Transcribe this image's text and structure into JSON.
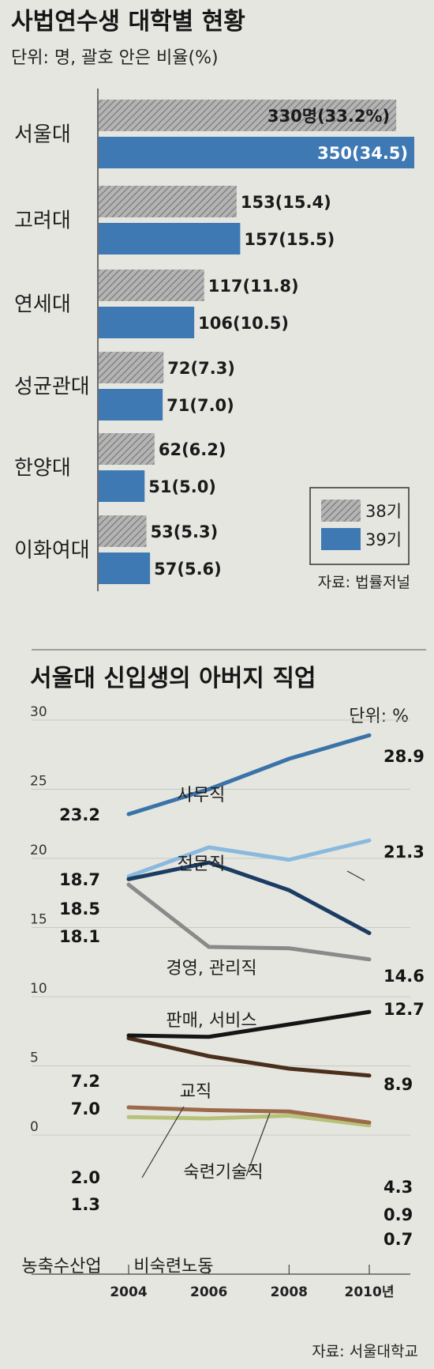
{
  "chart_data": [
    {
      "type": "bar",
      "title": "사법연수생 대학별 현황",
      "subtitle": "단위: 명, 괄호 안은 비율(%)",
      "categories": [
        "서울대",
        "고려대",
        "연세대",
        "성균관대",
        "한양대",
        "이화여대"
      ],
      "series": [
        {
          "name": "38기",
          "values": [
            330,
            153,
            117,
            72,
            62,
            53
          ],
          "labels": [
            "330명(33.2%)",
            "153(15.4)",
            "117(11.8)",
            "72(7.3)",
            "62(6.2)",
            "53(5.3)"
          ],
          "color": "#9a9a9a"
        },
        {
          "name": "39기",
          "values": [
            350,
            157,
            106,
            71,
            51,
            57
          ],
          "labels": [
            "350(34.5)",
            "157(15.5)",
            "106(10.5)",
            "71(7.0)",
            "51(5.0)",
            "57(5.6)"
          ],
          "color": "#3f79b4"
        }
      ],
      "legend_position": "bottom-right",
      "source": "자료: 법률저널"
    },
    {
      "type": "line",
      "title": "서울대 신입생의 아버지 직업",
      "unit": "단위: %",
      "x": [
        2004,
        2006,
        2008,
        2010
      ],
      "x_tick_labels": [
        "2004",
        "2006",
        "2008",
        "2010년"
      ],
      "y_ticks": [
        0,
        5,
        10,
        15,
        20,
        25,
        30
      ],
      "ylim": [
        0,
        30
      ],
      "grid": true,
      "series": [
        {
          "name": "사무직",
          "values": [
            23.2,
            25.0,
            27.2,
            28.9
          ],
          "start_label": "23.2",
          "end_label": "28.9",
          "color": "#3a73a8"
        },
        {
          "name": "전문직",
          "values": [
            18.7,
            20.8,
            19.9,
            21.3
          ],
          "start_label": "18.7",
          "end_label": "21.3",
          "color": "#8ab9de"
        },
        {
          "name": "경영, 관리직",
          "values": [
            18.5,
            19.7,
            17.7,
            14.6
          ],
          "start_label": "18.5",
          "end_label": "14.6",
          "color": "#1b3c63"
        },
        {
          "name": "판매, 서비스",
          "values": [
            18.1,
            13.6,
            13.5,
            12.7
          ],
          "start_label": "18.1",
          "end_label": "12.7",
          "color": "#8a8a8a"
        },
        {
          "name": "교직",
          "values": [
            7.2,
            7.1,
            8.0,
            8.9
          ],
          "start_label": "7.2",
          "end_label": "8.9",
          "color": "#151515"
        },
        {
          "name": "숙련기술직",
          "values": [
            7.0,
            5.7,
            4.8,
            4.3
          ],
          "start_label": "7.0",
          "end_label": "4.3",
          "color": "#4a2f1c"
        },
        {
          "name": "농축수산업",
          "values": [
            2.0,
            1.8,
            1.7,
            0.9
          ],
          "start_label": "2.0",
          "end_label": "0.9",
          "color": "#9b6a4a"
        },
        {
          "name": "비숙련노동",
          "values": [
            1.3,
            1.2,
            1.4,
            0.7
          ],
          "start_label": "1.3",
          "end_label": "0.7",
          "color": "#b7c278"
        }
      ],
      "source": "자료: 서울대학교"
    }
  ]
}
